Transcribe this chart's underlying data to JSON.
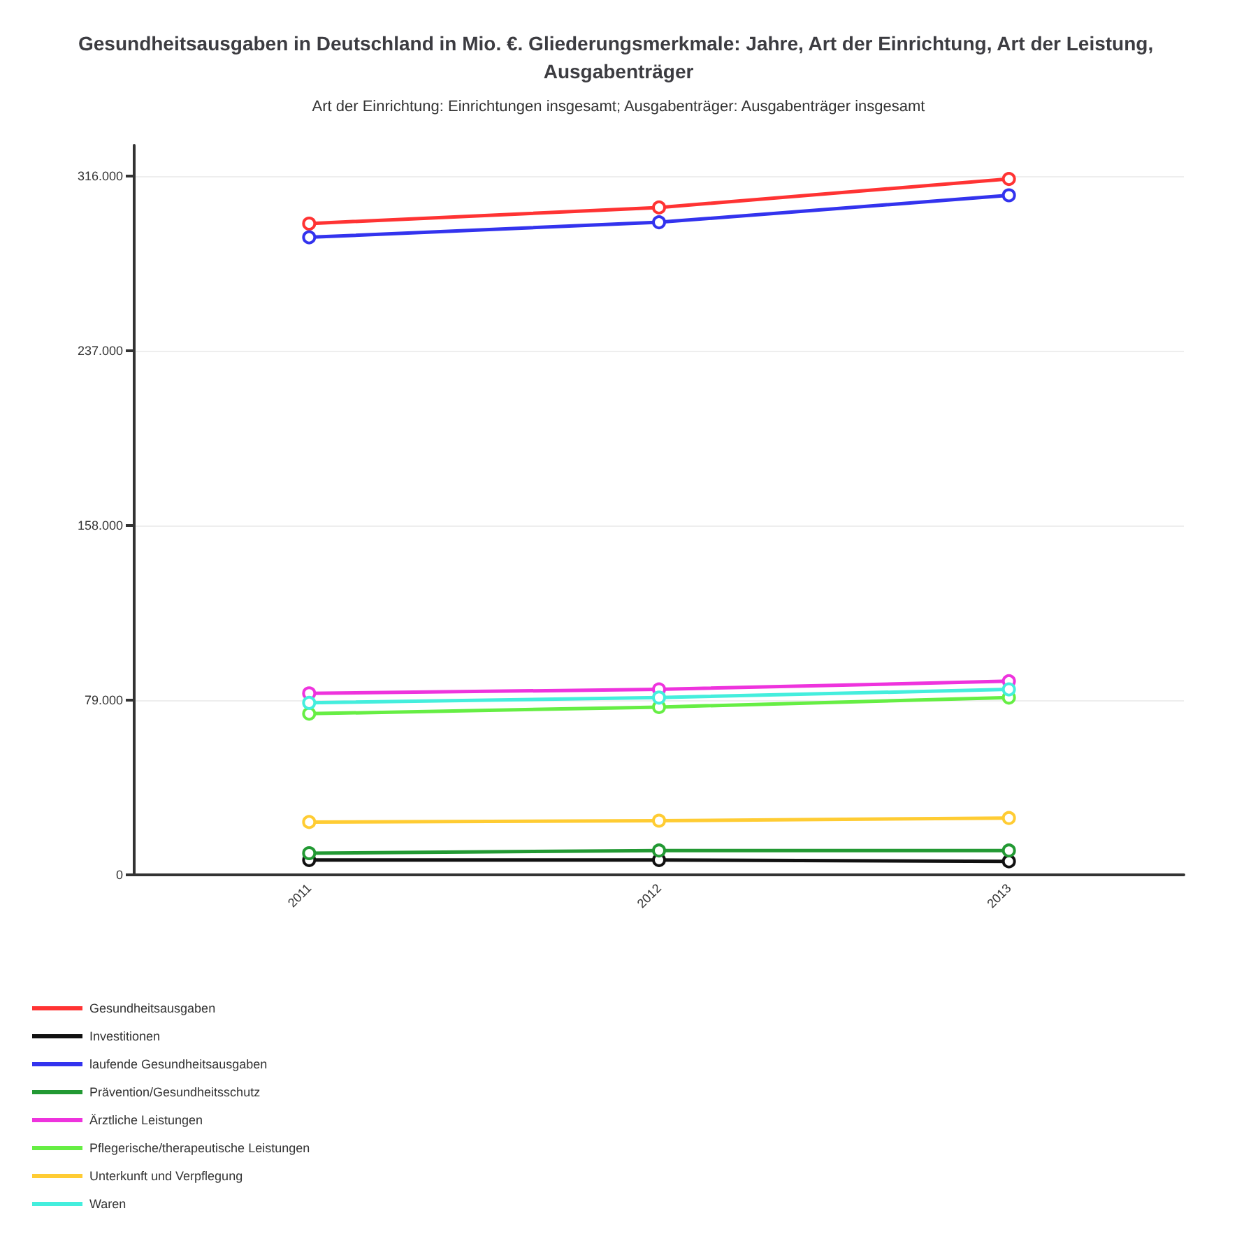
{
  "chart_data": {
    "type": "line",
    "title": "Gesundheitsausgaben in Deutschland in Mio. €. Gliederungsmerkmale: Jahre, Art der Einrichtung, Art der Leistung, Ausgabenträger",
    "subtitle": "Art der Einrichtung: Einrichtungen insgesamt; Ausgabenträger: Ausgabenträger insgesamt",
    "categories": [
      "2011",
      "2012",
      "2013"
    ],
    "series": [
      {
        "name": "Gesundheitsausgaben",
        "color": "#ff3333",
        "values": [
          294600,
          301900,
          314800
        ]
      },
      {
        "name": "Investitionen",
        "color": "#111111",
        "values": [
          6700,
          6700,
          6100
        ]
      },
      {
        "name": "laufende Gesundheitsausgaben",
        "color": "#3333ee",
        "values": [
          288400,
          295200,
          307400
        ]
      },
      {
        "name": "Prävention/Gesundheitsschutz",
        "color": "#229933",
        "values": [
          9800,
          11000,
          11000
        ]
      },
      {
        "name": "Ärztliche Leistungen",
        "color": "#ee33dd",
        "values": [
          82100,
          83900,
          87600
        ]
      },
      {
        "name": "Pflegerische/therapeutische Leistungen",
        "color": "#66ee44",
        "values": [
          72900,
          75900,
          80200
        ]
      },
      {
        "name": "Unterkunft und Verpflegung",
        "color": "#ffcc33",
        "values": [
          23900,
          24500,
          25700
        ]
      },
      {
        "name": "Waren",
        "color": "#44eedd",
        "values": [
          77800,
          80200,
          83900
        ]
      }
    ],
    "ylim": [
      0,
      330000
    ],
    "yticks": [
      0,
      {
        "value": 79000,
        "label": "79.000"
      },
      {
        "value": 158000,
        "label": "158.000"
      },
      {
        "value": 237000,
        "label": "237.000"
      },
      {
        "value": 316000,
        "label": "316.000"
      }
    ],
    "grid": "y",
    "legend": "bottom",
    "marker": "circle",
    "line_style": "solid"
  }
}
